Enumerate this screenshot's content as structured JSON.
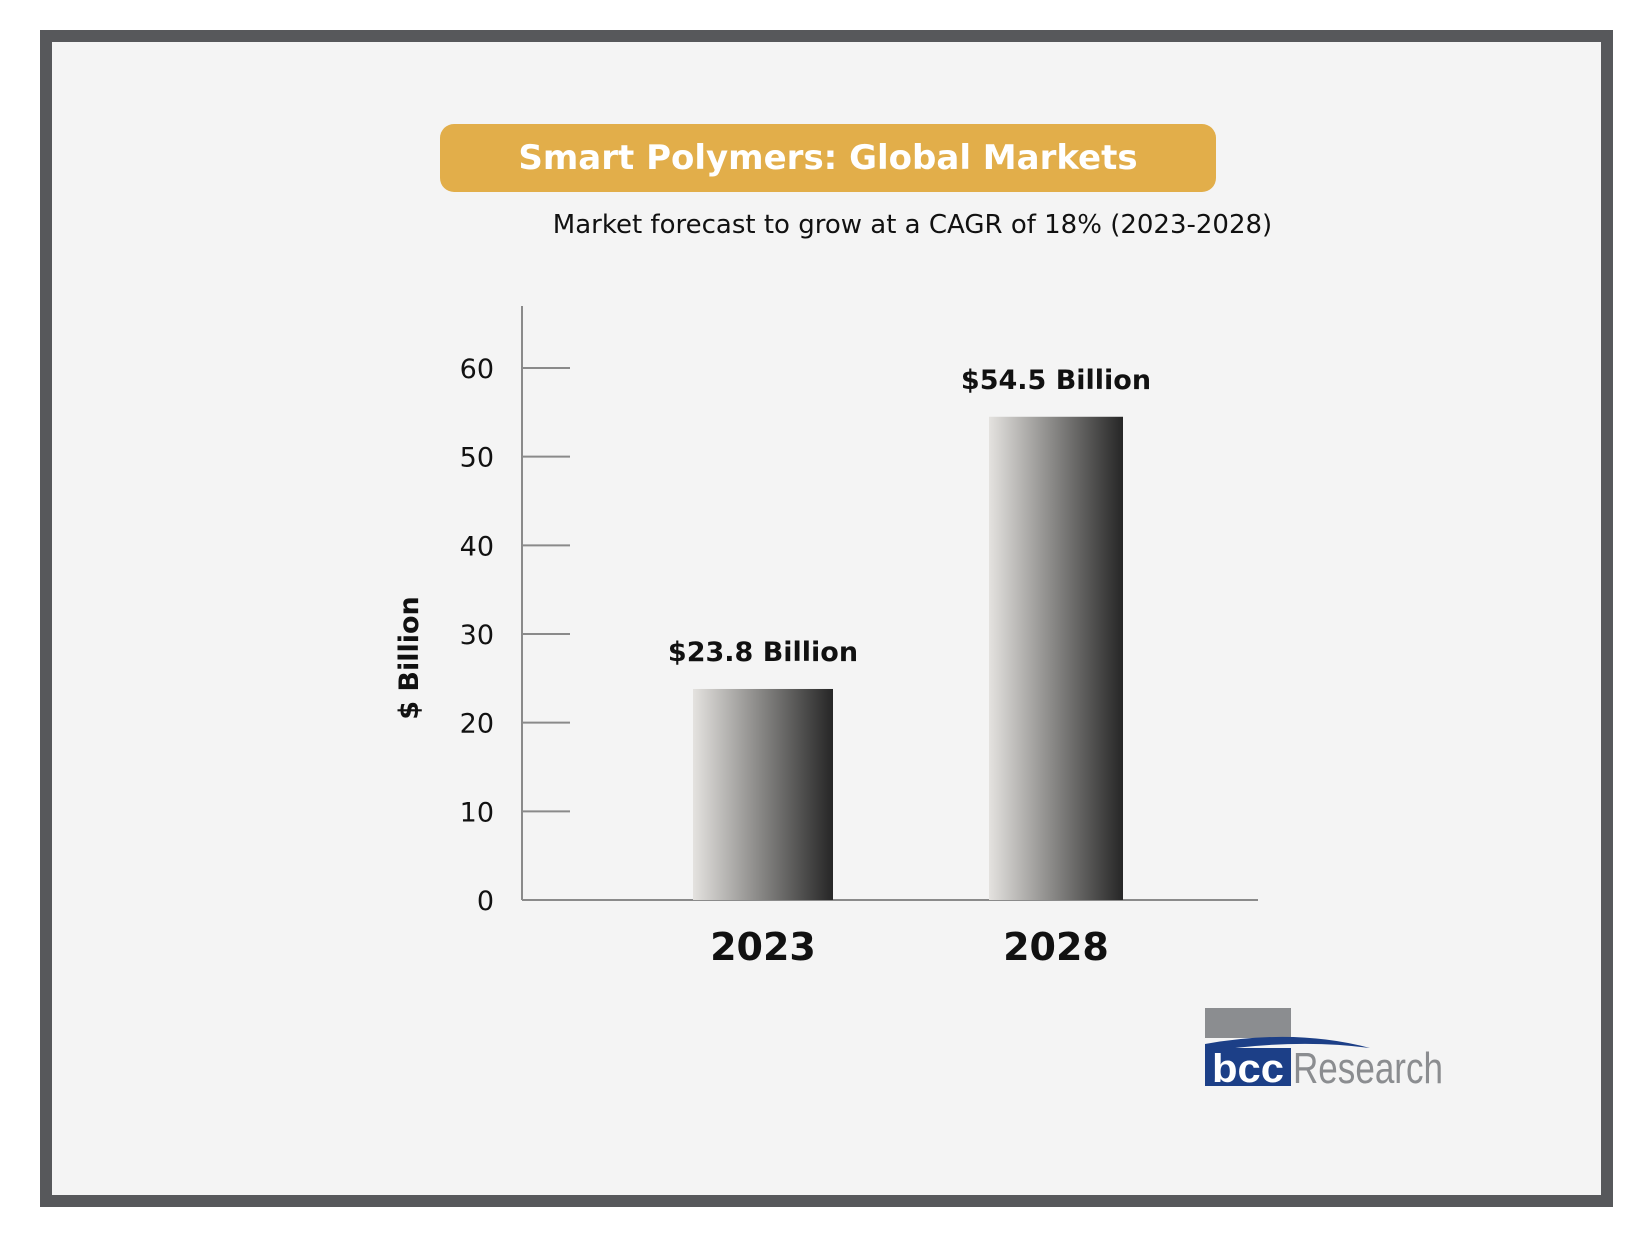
{
  "colors": {
    "frame": "#57585b",
    "background": "#f4f4f4",
    "banner": "#e2ae4a",
    "axis": "#8a8a8a",
    "logo_blue": "#1c3f87",
    "logo_grey": "#8b8d90"
  },
  "header": {
    "title": "Smart Polymers: Global Markets",
    "subtitle": "Market forecast to grow at a CAGR of 18% (2023-2028)"
  },
  "chart_data": {
    "type": "bar",
    "title": "Smart Polymers: Global Markets",
    "subtitle": "Market forecast to grow at a CAGR of 18% (2023-2028)",
    "categories": [
      "2023",
      "2028"
    ],
    "values": [
      23.8,
      54.5
    ],
    "data_labels": [
      "$23.8 Billion",
      "$54.5 Billion"
    ],
    "ylabel": "$ Billion",
    "xlabel": "",
    "ylim": [
      0,
      66
    ],
    "yticks": [
      0,
      10,
      20,
      30,
      40,
      50,
      60
    ],
    "grid": false,
    "legend": "none"
  },
  "logo": {
    "brand": "bcc",
    "text": "Research"
  }
}
